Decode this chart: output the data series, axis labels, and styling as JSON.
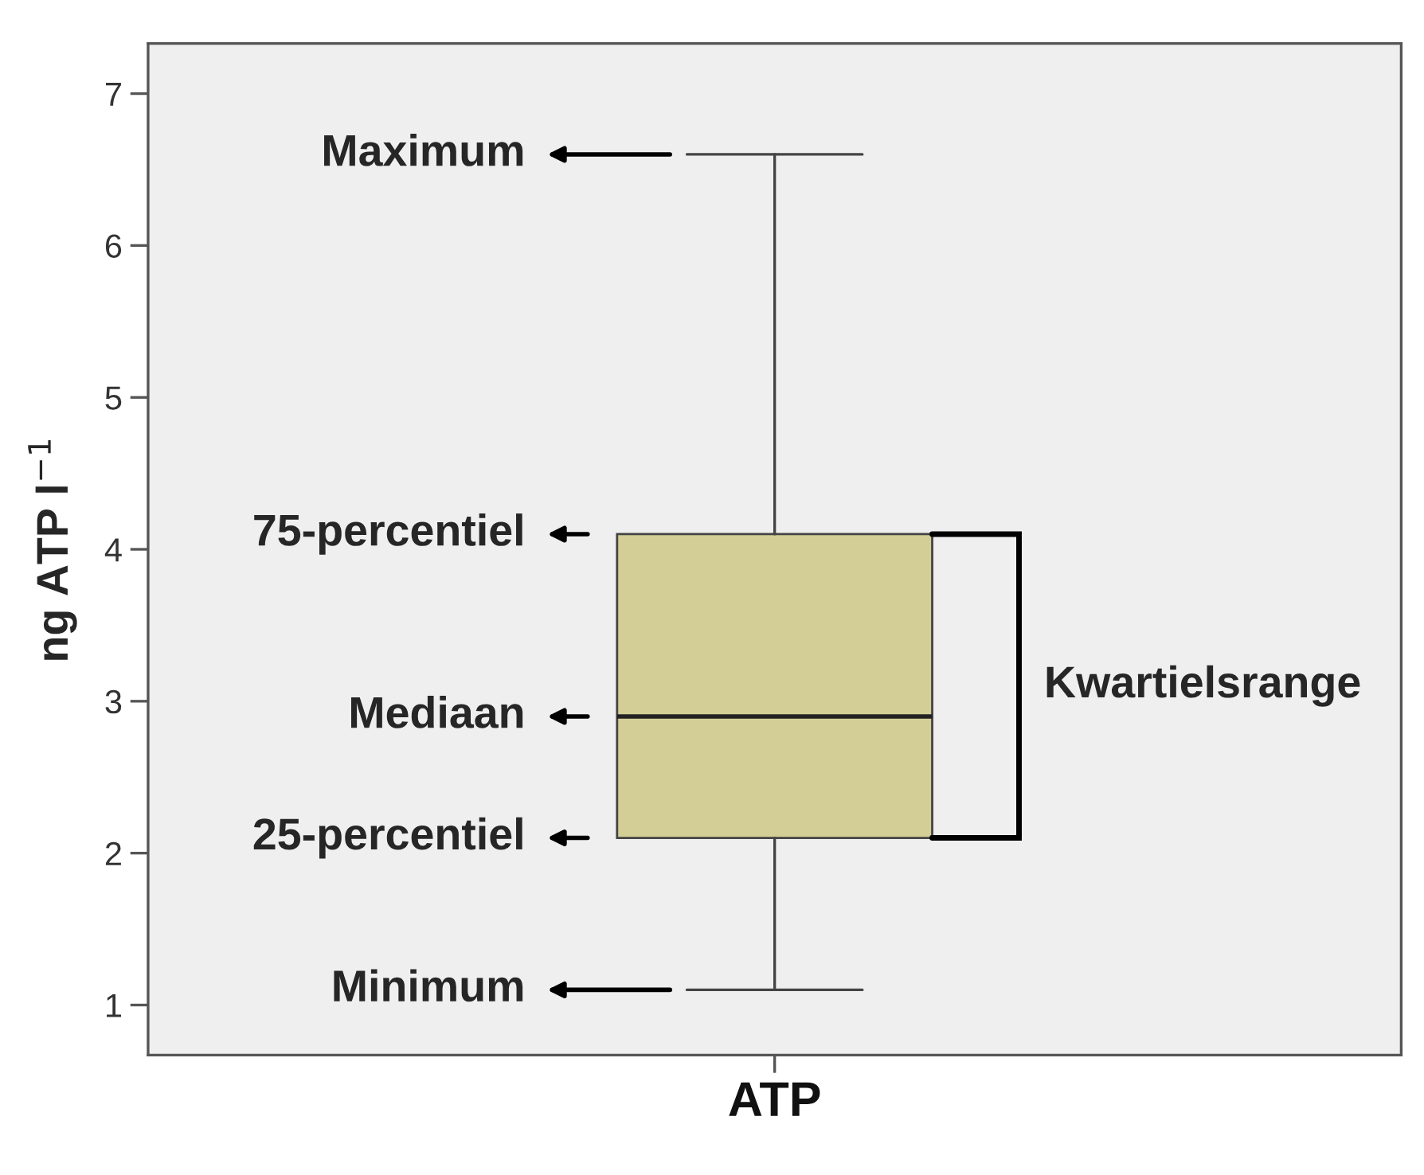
{
  "chart_data": {
    "type": "box",
    "categories": [
      "ATP"
    ],
    "ylabel": "ng ATP l$^{−1}$",
    "ylim": [
      0.67,
      7.33
    ],
    "yticks": [
      1,
      2,
      3,
      4,
      5,
      6,
      7
    ],
    "grid": false,
    "series": [
      {
        "color": "#d3ce96",
        "boxes": [
          {
            "low": 1.1,
            "q1": 2.1,
            "median": 2.9,
            "q3": 4.1,
            "high": 6.6
          }
        ]
      }
    ],
    "annotations": [
      "Maximum",
      "75-percentiel",
      "Mediaan",
      "25-percentiel",
      "Minimum",
      "Kwartielsrange"
    ]
  }
}
